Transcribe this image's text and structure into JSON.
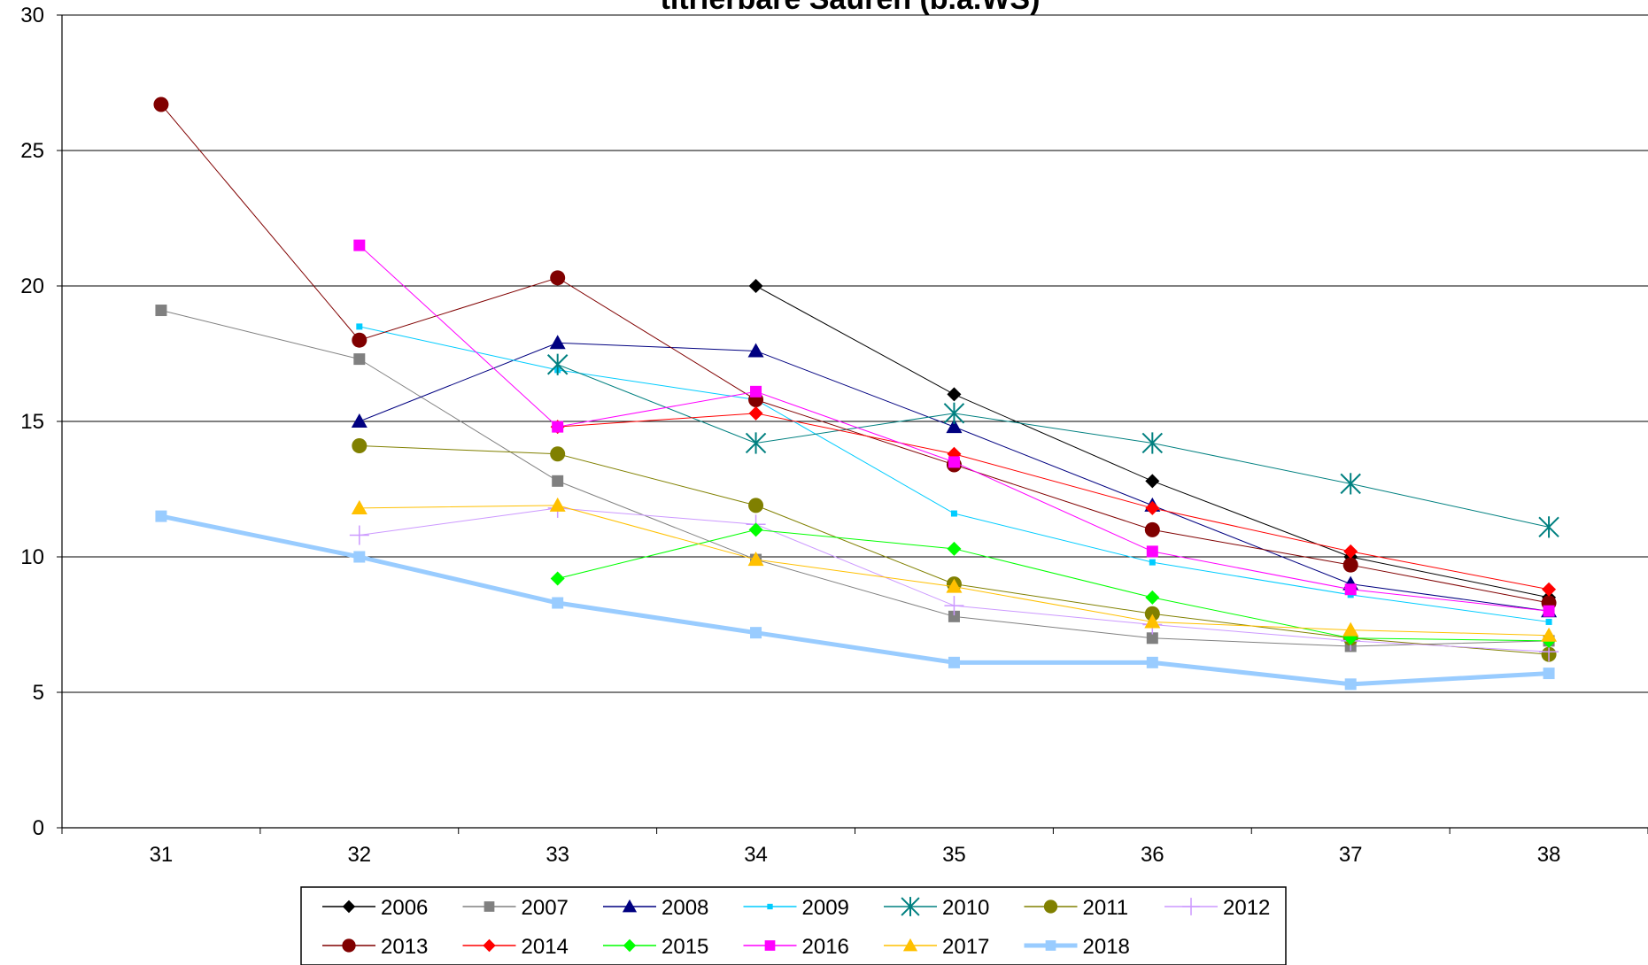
{
  "chart_data": {
    "type": "line",
    "title": "titrierbare Säuren (b.a.WS)",
    "xlabel": "",
    "ylabel": "",
    "x": [
      31,
      32,
      33,
      34,
      35,
      36,
      37,
      38
    ],
    "ylim": [
      0,
      30
    ],
    "yticks": [
      0,
      5,
      10,
      15,
      20,
      25,
      30
    ],
    "grid": "horizontal",
    "legend_position": "bottom",
    "series": [
      {
        "name": "2006",
        "color": "#000000",
        "marker": "diamond",
        "values": [
          null,
          null,
          null,
          20.0,
          16.0,
          12.8,
          10.0,
          8.5
        ]
      },
      {
        "name": "2007",
        "color": "#808080",
        "marker": "square",
        "values": [
          19.1,
          17.3,
          12.8,
          9.9,
          7.8,
          7.0,
          6.7,
          6.9
        ]
      },
      {
        "name": "2008",
        "color": "#000080",
        "marker": "triangle",
        "values": [
          null,
          15.0,
          17.9,
          17.6,
          14.8,
          11.9,
          9.0,
          8.0
        ]
      },
      {
        "name": "2009",
        "color": "#00ccff",
        "marker": "smallsquare",
        "values": [
          null,
          18.5,
          16.9,
          15.8,
          11.6,
          9.8,
          8.6,
          7.6
        ]
      },
      {
        "name": "2010",
        "color": "#008080",
        "marker": "asterisk",
        "values": [
          null,
          null,
          17.1,
          14.2,
          15.3,
          14.2,
          12.7,
          11.1
        ]
      },
      {
        "name": "2011",
        "color": "#808000",
        "marker": "circle",
        "values": [
          null,
          14.1,
          13.8,
          11.9,
          9.0,
          7.9,
          7.0,
          6.4
        ]
      },
      {
        "name": "2012",
        "color": "#cc99ff",
        "marker": "plus",
        "values": [
          null,
          10.8,
          11.8,
          11.2,
          8.2,
          7.5,
          6.9,
          6.5
        ]
      },
      {
        "name": "2013",
        "color": "#800000",
        "marker": "circle",
        "values": [
          26.7,
          18.0,
          20.3,
          15.8,
          13.4,
          11.0,
          9.7,
          8.3
        ]
      },
      {
        "name": "2014",
        "color": "#ff0000",
        "marker": "diamond",
        "values": [
          null,
          null,
          14.8,
          15.3,
          13.8,
          11.8,
          10.2,
          8.8
        ]
      },
      {
        "name": "2015",
        "color": "#00ff00",
        "marker": "diamond",
        "values": [
          null,
          null,
          9.2,
          11.0,
          10.3,
          8.5,
          7.0,
          6.9
        ]
      },
      {
        "name": "2016",
        "color": "#ff00ff",
        "marker": "square",
        "values": [
          null,
          21.5,
          14.8,
          16.1,
          13.5,
          10.2,
          8.8,
          8.0
        ]
      },
      {
        "name": "2017",
        "color": "#ffc000",
        "marker": "triangle",
        "values": [
          null,
          11.8,
          11.9,
          9.9,
          8.9,
          7.6,
          7.3,
          7.1
        ]
      },
      {
        "name": "2018",
        "color": "#99ccff",
        "marker": "square",
        "thick": true,
        "values": [
          11.5,
          10.0,
          8.3,
          7.2,
          6.1,
          6.1,
          5.3,
          5.7
        ]
      }
    ]
  }
}
